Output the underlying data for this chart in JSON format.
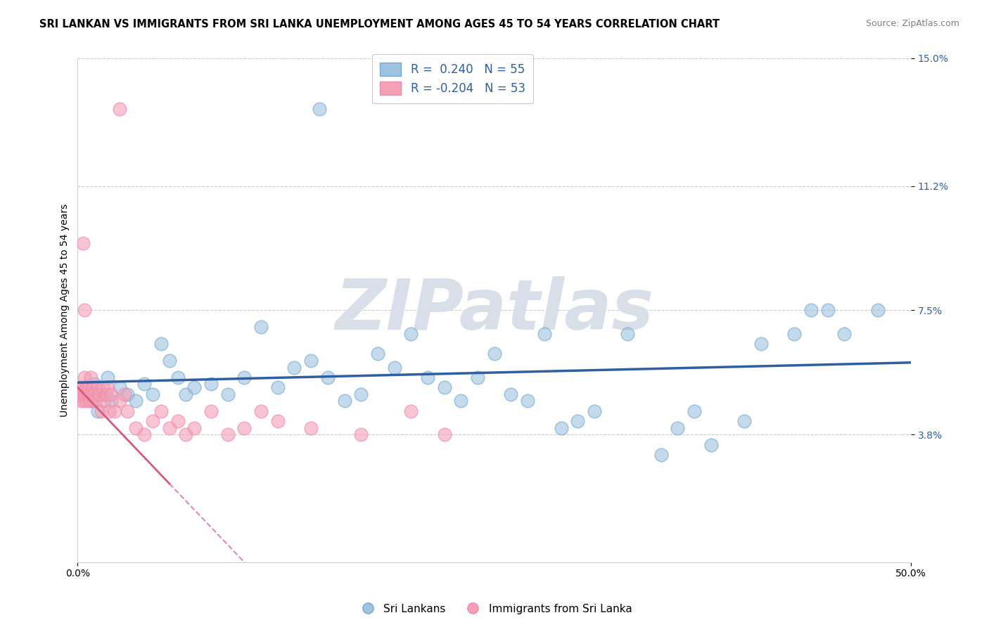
{
  "title": "SRI LANKAN VS IMMIGRANTS FROM SRI LANKA UNEMPLOYMENT AMONG AGES 45 TO 54 YEARS CORRELATION CHART",
  "source": "Source: ZipAtlas.com",
  "ylabel": "Unemployment Among Ages 45 to 54 years",
  "x_min": 0.0,
  "x_max": 50.0,
  "y_min": 0.0,
  "y_max": 15.0,
  "x_tick_labels": [
    "0.0%",
    "50.0%"
  ],
  "y_tick_values": [
    3.8,
    7.5,
    11.2,
    15.0
  ],
  "y_tick_labels": [
    "3.8%",
    "7.5%",
    "11.2%",
    "15.0%"
  ],
  "legend1_label": "R =  0.240   N = 55",
  "legend2_label": "R = -0.204   N = 53",
  "legend_bottom1": "Sri Lankans",
  "legend_bottom2": "Immigrants from Sri Lanka",
  "R_blue": 0.24,
  "R_pink": -0.204,
  "blue_color": "#9dc3e0",
  "pink_color": "#f4a0b5",
  "blue_edge_color": "#7aabcf",
  "pink_edge_color": "#f48aab",
  "blue_line_color": "#2e5fa3",
  "pink_line_color": "#d45b7a",
  "watermark": "ZIPatlas",
  "watermark_color": "#d8dfe8",
  "grid_color": "#cccccc",
  "title_fontsize": 10.5,
  "axis_label_fontsize": 10,
  "tick_label_fontsize": 10,
  "blue_dots_x": [
    0.3,
    0.5,
    0.8,
    1.0,
    1.2,
    1.5,
    1.8,
    2.0,
    2.5,
    3.0,
    3.5,
    4.0,
    4.5,
    5.0,
    5.5,
    6.0,
    6.5,
    7.0,
    8.0,
    9.0,
    10.0,
    11.0,
    12.0,
    13.0,
    14.0,
    15.0,
    16.0,
    17.0,
    18.0,
    19.0,
    20.0,
    21.0,
    22.0,
    23.0,
    24.0,
    25.0,
    26.0,
    27.0,
    28.0,
    29.0,
    30.0,
    31.0,
    33.0,
    35.0,
    36.0,
    37.0,
    38.0,
    40.0,
    41.0,
    43.0,
    44.0,
    45.0,
    46.0,
    48.0,
    14.5
  ],
  "blue_dots_y": [
    5.0,
    5.2,
    4.8,
    5.3,
    4.5,
    5.0,
    5.5,
    4.8,
    5.2,
    5.0,
    4.8,
    5.3,
    5.0,
    6.5,
    6.0,
    5.5,
    5.0,
    5.2,
    5.3,
    5.0,
    5.5,
    7.0,
    5.2,
    5.8,
    6.0,
    5.5,
    4.8,
    5.0,
    6.2,
    5.8,
    6.8,
    5.5,
    5.2,
    4.8,
    5.5,
    6.2,
    5.0,
    4.8,
    6.8,
    4.0,
    4.2,
    4.5,
    6.8,
    3.2,
    4.0,
    4.5,
    3.5,
    4.2,
    6.5,
    6.8,
    7.5,
    7.5,
    6.8,
    7.5,
    13.5
  ],
  "pink_dots_x": [
    0.1,
    0.15,
    0.2,
    0.25,
    0.3,
    0.35,
    0.4,
    0.45,
    0.5,
    0.55,
    0.6,
    0.65,
    0.7,
    0.75,
    0.8,
    0.85,
    0.9,
    0.95,
    1.0,
    1.1,
    1.2,
    1.3,
    1.4,
    1.5,
    1.6,
    1.7,
    1.8,
    1.9,
    2.0,
    2.2,
    2.5,
    2.8,
    3.0,
    3.5,
    4.0,
    4.5,
    5.0,
    5.5,
    6.0,
    6.5,
    7.0,
    8.0,
    9.0,
    10.0,
    11.0,
    12.0,
    14.0,
    17.0,
    20.0,
    22.0,
    0.3,
    0.4,
    2.5
  ],
  "pink_dots_y": [
    5.0,
    5.2,
    4.8,
    5.0,
    5.2,
    4.8,
    5.5,
    5.0,
    5.2,
    4.8,
    5.0,
    5.2,
    5.0,
    4.8,
    5.5,
    5.0,
    5.2,
    4.8,
    5.0,
    4.8,
    5.2,
    5.0,
    4.5,
    5.2,
    4.8,
    5.0,
    5.2,
    4.5,
    5.0,
    4.5,
    4.8,
    5.0,
    4.5,
    4.0,
    3.8,
    4.2,
    4.5,
    4.0,
    4.2,
    3.8,
    4.0,
    4.5,
    3.8,
    4.0,
    4.5,
    4.2,
    4.0,
    3.8,
    4.5,
    3.8,
    9.5,
    7.5,
    13.5
  ],
  "pink_line_x_start": 0.0,
  "pink_line_x_end": 10.0,
  "blue_line_x_start": 0.0,
  "blue_line_x_end": 50.0
}
